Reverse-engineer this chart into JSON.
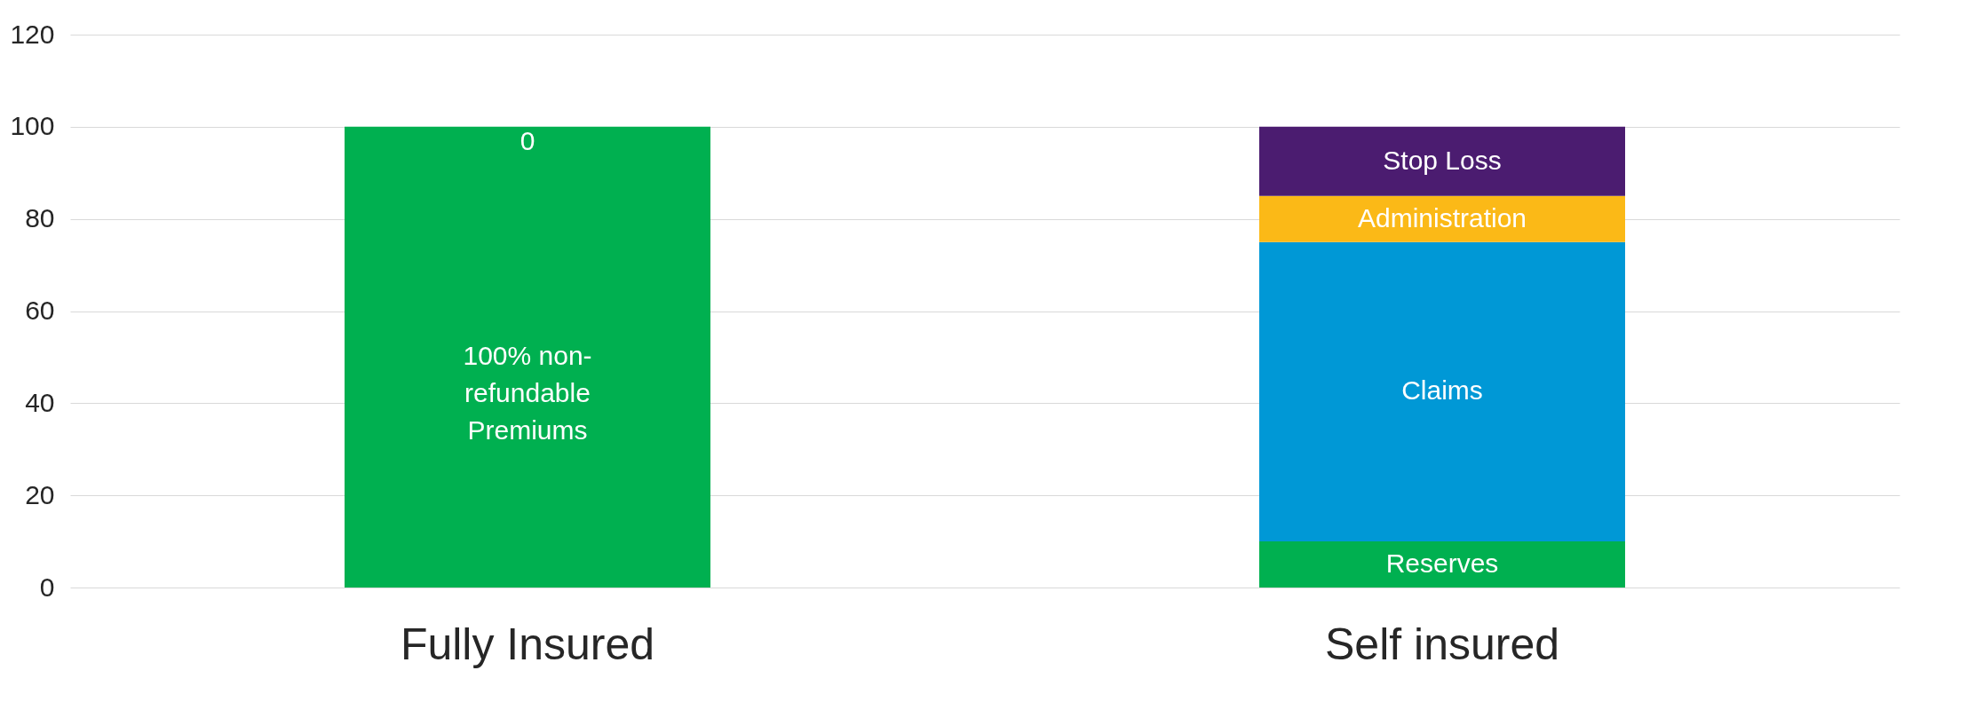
{
  "chart_data": {
    "type": "bar",
    "stacked": true,
    "categories": [
      "Fully Insured",
      "Self insured"
    ],
    "series": [
      {
        "color": "#00b050",
        "values": [
          100,
          10
        ],
        "value_labels": [
          "100% non-\nrefundable\nPremiums",
          "Reserves"
        ]
      },
      {
        "color": "#0098d6",
        "values": [
          0,
          65
        ],
        "value_labels": [
          "0",
          "Claims"
        ]
      },
      {
        "color": "#fbb917",
        "values": [
          null,
          10
        ],
        "value_labels": [
          null,
          "Administration"
        ]
      },
      {
        "color": "#4b1c70",
        "values": [
          null,
          15
        ],
        "value_labels": [
          null,
          "Stop Loss"
        ]
      }
    ],
    "ylim": [
      0,
      120
    ],
    "yticks": [
      0,
      20,
      40,
      60,
      80,
      100,
      120
    ],
    "grid": "y"
  }
}
